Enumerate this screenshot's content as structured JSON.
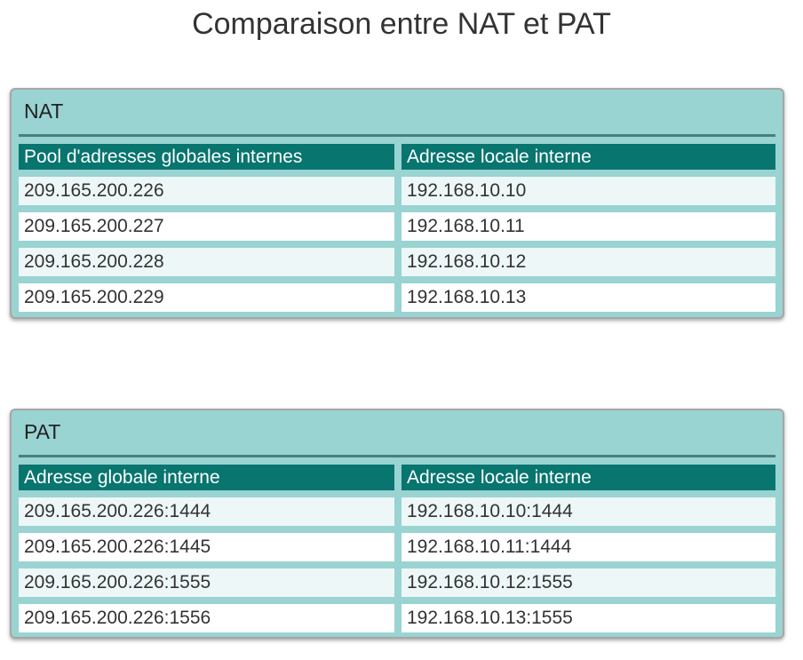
{
  "title": "Comparaison entre NAT et PAT",
  "colors": {
    "panel_bg": "#99d3d2",
    "header_bg": "#08756f",
    "row_light": "#eef7f7",
    "row_white": "#ffffff"
  },
  "nat": {
    "label": "NAT",
    "headers": [
      "Pool d'adresses globales internes",
      "Adresse locale interne"
    ],
    "rows": [
      [
        "209.165.200.226",
        "192.168.10.10"
      ],
      [
        "209.165.200.227",
        "192.168.10.11"
      ],
      [
        "209.165.200.228",
        "192.168.10.12"
      ],
      [
        "209.165.200.229",
        "192.168.10.13"
      ]
    ]
  },
  "pat": {
    "label": "PAT",
    "headers": [
      "Adresse globale interne",
      "Adresse locale interne"
    ],
    "rows": [
      [
        "209.165.200.226:1444",
        "192.168.10.10:1444"
      ],
      [
        "209.165.200.226:1445",
        "192.168.10.11:1444"
      ],
      [
        "209.165.200.226:1555",
        "192.168.10.12:1555"
      ],
      [
        "209.165.200.226:1556",
        "192.168.10.13:1555"
      ]
    ]
  }
}
